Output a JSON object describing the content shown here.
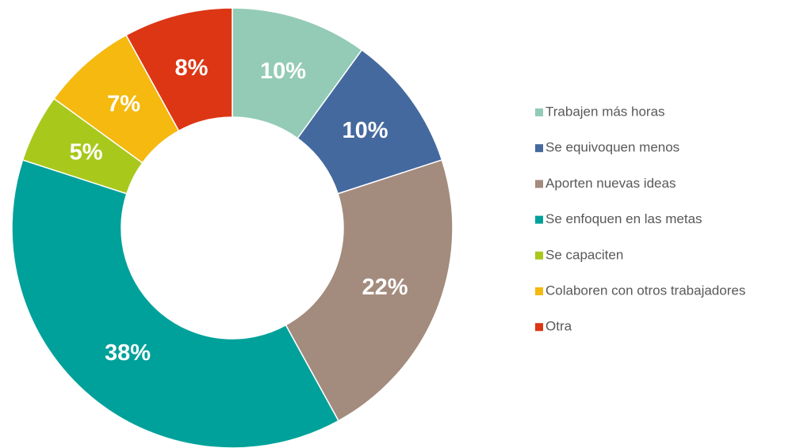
{
  "chart_data": {
    "type": "donut",
    "categories": [
      "Trabajen más horas",
      "Se equivoquen menos",
      "Aporten nuevas ideas",
      "Se enfoquen en las metas",
      "Se capaciten",
      "Colaboren con otros trabajadores",
      "Otra"
    ],
    "values": [
      10,
      10,
      22,
      38,
      5,
      7,
      8
    ],
    "value_labels": [
      "10%",
      "10%",
      "22%",
      "38%",
      "5%",
      "7%",
      "8%"
    ],
    "colors": [
      "#93cbb6",
      "#44699e",
      "#a38b7d",
      "#00a19a",
      "#a8c81c",
      "#f5b90f",
      "#dc3614"
    ],
    "legend": "right"
  }
}
